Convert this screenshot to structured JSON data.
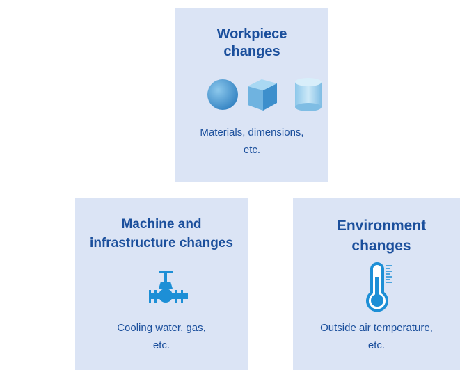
{
  "boxes": [
    {
      "title_lines": [
        "Workpiece",
        "changes"
      ],
      "description_lines": [
        "Materials, dimensions,",
        "etc."
      ]
    },
    {
      "title_lines": [
        "Machine and",
        "infrastructure changes"
      ],
      "description_lines": [
        "Cooling water, gas,",
        "etc."
      ]
    },
    {
      "title_lines": [
        "Environment",
        "changes"
      ],
      "description_lines": [
        "Outside air temperature,",
        "etc."
      ]
    }
  ]
}
